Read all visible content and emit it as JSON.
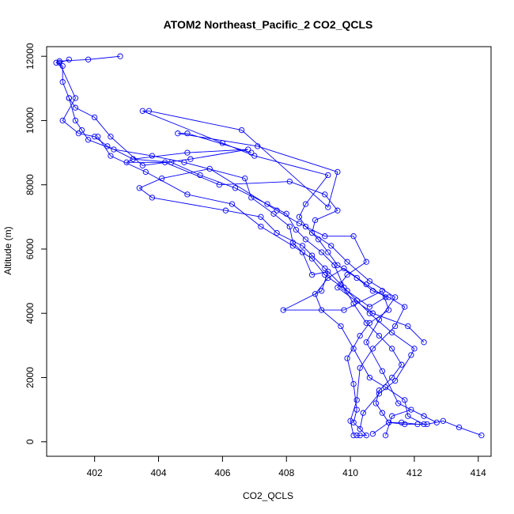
{
  "chart_data": {
    "type": "line",
    "title": "ATOM2 Northeast_Pacific_2 CO2_QCLS",
    "xlabel": "CO2_QCLS",
    "ylabel": "Altitude (m)",
    "xlim": [
      400.5,
      414.4
    ],
    "ylim": [
      -450,
      12300
    ],
    "xticks": [
      402,
      404,
      406,
      408,
      410,
      412,
      414
    ],
    "yticks": [
      0,
      2000,
      4000,
      6000,
      8000,
      10000,
      12000
    ],
    "markers": "open-circle",
    "color": "#0000ff",
    "series": [
      {
        "points": [
          [
            410.2,
            200
          ],
          [
            410.3,
            200
          ],
          [
            410.5,
            200
          ],
          [
            410.1,
            600
          ],
          [
            410.2,
            1000
          ],
          [
            410.1,
            1800
          ],
          [
            409.9,
            2600
          ],
          [
            410.3,
            3300
          ],
          [
            410.6,
            3700
          ],
          [
            411.2,
            4100
          ],
          [
            411.0,
            4700
          ],
          [
            409.8,
            4100
          ],
          [
            407.9,
            4100
          ],
          [
            409.1,
            4700
          ],
          [
            409.3,
            5300
          ],
          [
            408.8,
            5200
          ],
          [
            408.5,
            5900
          ],
          [
            408.2,
            6200
          ],
          [
            408.1,
            6700
          ],
          [
            407.6,
            7100
          ],
          [
            406.9,
            7600
          ],
          [
            406.7,
            8200
          ],
          [
            404.8,
            8700
          ],
          [
            403.8,
            8900
          ],
          [
            402.6,
            9100
          ],
          [
            401.8,
            9400
          ],
          [
            401.6,
            9700
          ],
          [
            401.4,
            10000
          ],
          [
            401.2,
            10700
          ],
          [
            401.0,
            11200
          ],
          [
            401.0,
            11700
          ],
          [
            400.8,
            11800
          ],
          [
            400.9,
            11850
          ],
          [
            401.8,
            11900
          ],
          [
            402.8,
            12000
          ]
        ]
      },
      {
        "points": [
          [
            414.1,
            200
          ],
          [
            413.4,
            450
          ],
          [
            412.9,
            650
          ],
          [
            412.4,
            550
          ],
          [
            411.7,
            550
          ],
          [
            411.2,
            600
          ],
          [
            411.0,
            900
          ],
          [
            410.8,
            1200
          ],
          [
            410.9,
            1600
          ],
          [
            411.3,
            2000
          ],
          [
            411.6,
            2400
          ],
          [
            411.3,
            2900
          ],
          [
            410.9,
            3300
          ],
          [
            410.5,
            3700
          ],
          [
            410.1,
            4300
          ],
          [
            409.8,
            4800
          ],
          [
            409.5,
            5500
          ],
          [
            409.1,
            5900
          ],
          [
            408.6,
            6300
          ],
          [
            408.3,
            6600
          ],
          [
            408.0,
            7100
          ],
          [
            407.4,
            7400
          ],
          [
            406.4,
            7900
          ],
          [
            405.3,
            8300
          ],
          [
            404.4,
            8700
          ],
          [
            403.2,
            8800
          ],
          [
            402.4,
            9200
          ],
          [
            402.0,
            9500
          ],
          [
            401.5,
            9600
          ],
          [
            401.0,
            10000
          ],
          [
            401.4,
            10700
          ],
          [
            400.9,
            11800
          ],
          [
            401.2,
            11900
          ]
        ]
      },
      {
        "points": [
          [
            410.1,
            200
          ],
          [
            410.0,
            650
          ],
          [
            410.2,
            1300
          ],
          [
            410.3,
            2300
          ],
          [
            410.7,
            2900
          ],
          [
            411.4,
            3600
          ],
          [
            411.7,
            4200
          ],
          [
            411.2,
            4500
          ],
          [
            410.7,
            4700
          ],
          [
            410.2,
            5100
          ],
          [
            409.6,
            5500
          ],
          [
            409.3,
            5900
          ],
          [
            409.0,
            6300
          ],
          [
            408.6,
            6700
          ],
          [
            408.4,
            7000
          ],
          [
            408.6,
            7400
          ],
          [
            409.3,
            8300
          ],
          [
            407.0,
            8900
          ],
          [
            406.0,
            9300
          ],
          [
            403.5,
            10300
          ],
          [
            403.7,
            10300
          ],
          [
            406.6,
            9700
          ],
          [
            409.3,
            7300
          ],
          [
            409.6,
            8400
          ],
          [
            407.1,
            9200
          ],
          [
            404.6,
            9600
          ],
          [
            404.9,
            9600
          ],
          [
            406.9,
            9000
          ]
        ]
      },
      {
        "points": [
          [
            410.3,
            400
          ],
          [
            410.4,
            900
          ],
          [
            410.9,
            1500
          ],
          [
            411.4,
            1900
          ],
          [
            411.9,
            2700
          ],
          [
            412.0,
            2900
          ],
          [
            411.3,
            3400
          ],
          [
            410.6,
            4000
          ],
          [
            410.2,
            4400
          ],
          [
            409.7,
            4900
          ],
          [
            409.2,
            5400
          ],
          [
            408.8,
            5800
          ],
          [
            408.5,
            6100
          ],
          [
            407.7,
            6500
          ],
          [
            407.2,
            7000
          ],
          [
            406.1,
            7200
          ],
          [
            403.8,
            7600
          ],
          [
            403.4,
            7900
          ],
          [
            404.1,
            8200
          ],
          [
            405.6,
            8500
          ],
          [
            407.7,
            7200
          ],
          [
            408.4,
            6800
          ],
          [
            409.2,
            6400
          ],
          [
            410.1,
            6400
          ],
          [
            410.5,
            5600
          ],
          [
            409.9,
            5200
          ],
          [
            409.6,
            4800
          ],
          [
            410.7,
            4000
          ],
          [
            411.8,
            3600
          ],
          [
            412.3,
            3100
          ]
        ]
      },
      {
        "points": [
          [
            411.1,
            200
          ],
          [
            411.3,
            800
          ],
          [
            411.9,
            1000
          ],
          [
            412.3,
            800
          ],
          [
            412.7,
            600
          ],
          [
            411.5,
            1200
          ],
          [
            411.0,
            2200
          ],
          [
            410.5,
            3100
          ],
          [
            410.9,
            3800
          ],
          [
            411.4,
            4500
          ],
          [
            410.6,
            5000
          ],
          [
            409.9,
            5600
          ],
          [
            409.4,
            6100
          ],
          [
            408.8,
            6500
          ],
          [
            408.9,
            6900
          ],
          [
            409.6,
            7200
          ],
          [
            409.2,
            7700
          ],
          [
            408.1,
            8100
          ],
          [
            405.9,
            8000
          ],
          [
            404.2,
            8700
          ],
          [
            403.0,
            8700
          ],
          [
            403.2,
            8800
          ],
          [
            404.9,
            9000
          ],
          [
            406.8,
            9100
          ],
          [
            405.0,
            8800
          ],
          [
            403.5,
            8600
          ],
          [
            402.5,
            9500
          ],
          [
            402.0,
            10100
          ],
          [
            401.4,
            10400
          ],
          [
            401.2,
            10700
          ]
        ]
      },
      {
        "points": [
          [
            410.7,
            250
          ],
          [
            411.2,
            600
          ],
          [
            411.6,
            600
          ],
          [
            412.1,
            550
          ],
          [
            412.3,
            550
          ],
          [
            411.8,
            800
          ],
          [
            411.7,
            1300
          ],
          [
            411.1,
            1700
          ],
          [
            410.6,
            2000
          ],
          [
            410.1,
            2900
          ],
          [
            409.7,
            3600
          ],
          [
            409.1,
            4100
          ],
          [
            408.9,
            4600
          ],
          [
            409.3,
            5100
          ],
          [
            409.8,
            5400
          ],
          [
            410.5,
            4900
          ],
          [
            411.1,
            4500
          ],
          [
            410.6,
            4200
          ],
          [
            409.9,
            4700
          ],
          [
            409.2,
            5200
          ],
          [
            408.8,
            5700
          ],
          [
            408.2,
            6100
          ],
          [
            407.2,
            6700
          ],
          [
            406.3,
            7400
          ],
          [
            404.9,
            7700
          ],
          [
            403.6,
            8400
          ],
          [
            402.5,
            8900
          ],
          [
            402.1,
            9500
          ]
        ]
      }
    ]
  }
}
